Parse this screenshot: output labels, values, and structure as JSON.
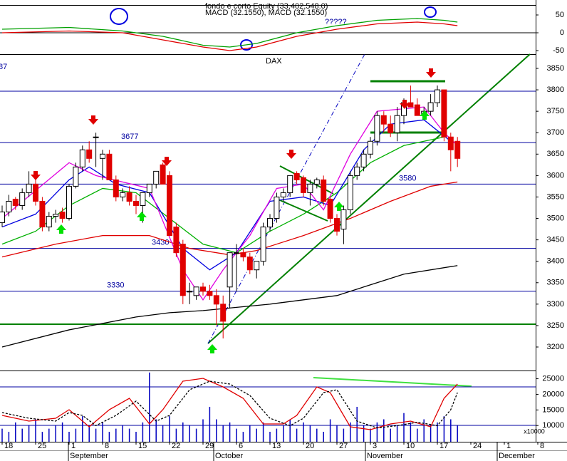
{
  "chart_data": {
    "type": "candlestick",
    "title": "DAX",
    "indicator_title": "MACD (32.1550), MACD (32.1550)",
    "equity_title": "fondo e corto Equity (33,402,548.0)",
    "note": "?????",
    "cut_label": "87",
    "candles": {
      "open": [
        3490,
        3515,
        3545,
        3530,
        3560,
        3580,
        3540,
        3480,
        3505,
        3515,
        3500,
        3575,
        3620,
        3660,
        3690,
        3640,
        3650,
        3590,
        3550,
        3560,
        3540,
        3530,
        3560,
        3580,
        3625,
        3600,
        3480,
        3440,
        3330,
        3320,
        3340,
        3330,
        3320,
        3300,
        3340,
        3420,
        3420,
        3410,
        3380,
        3400,
        3480,
        3500,
        3550,
        3560,
        3605,
        3595,
        3560,
        3580,
        3590,
        3545,
        3500,
        3475,
        3520,
        3600,
        3620,
        3650,
        3680,
        3740,
        3720,
        3700,
        3740,
        3770,
        3765,
        3745,
        3750,
        3770,
        3800,
        3690,
        3680
      ],
      "high": [
        3530,
        3555,
        3550,
        3570,
        3610,
        3590,
        3550,
        3515,
        3520,
        3525,
        3580,
        3630,
        3670,
        3680,
        3700,
        3660,
        3660,
        3600,
        3570,
        3575,
        3555,
        3545,
        3575,
        3610,
        3630,
        3610,
        3490,
        3450,
        3350,
        3340,
        3350,
        3345,
        3335,
        3320,
        3350,
        3440,
        3430,
        3420,
        3400,
        3490,
        3510,
        3560,
        3570,
        3590,
        3610,
        3600,
        3590,
        3595,
        3600,
        3550,
        3510,
        3530,
        3610,
        3630,
        3660,
        3690,
        3750,
        3750,
        3740,
        3760,
        3780,
        3810,
        3780,
        3760,
        3790,
        3810,
        3800,
        3700,
        3690
      ],
      "low": [
        3480,
        3505,
        3520,
        3520,
        3550,
        3530,
        3470,
        3470,
        3490,
        3490,
        3495,
        3570,
        3610,
        3630,
        3620,
        3590,
        3590,
        3540,
        3540,
        3530,
        3510,
        3490,
        3550,
        3570,
        3580,
        3460,
        3410,
        3300,
        3300,
        3310,
        3320,
        3310,
        3250,
        3220,
        3290,
        3330,
        3400,
        3370,
        3360,
        3390,
        3470,
        3490,
        3540,
        3550,
        3580,
        3550,
        3530,
        3570,
        3530,
        3490,
        3460,
        3440,
        3510,
        3590,
        3610,
        3640,
        3670,
        3700,
        3690,
        3680,
        3720,
        3760,
        3740,
        3730,
        3740,
        3760,
        3680,
        3610,
        3620
      ],
      "close": [
        3515,
        3540,
        3530,
        3560,
        3580,
        3540,
        3480,
        3505,
        3510,
        3500,
        3575,
        3620,
        3660,
        3640,
        3690,
        3650,
        3590,
        3550,
        3560,
        3540,
        3530,
        3560,
        3580,
        3610,
        3580,
        3460,
        3420,
        3320,
        3330,
        3340,
        3330,
        3320,
        3300,
        3260,
        3420,
        3420,
        3410,
        3380,
        3400,
        3480,
        3500,
        3550,
        3560,
        3600,
        3590,
        3560,
        3580,
        3590,
        3540,
        3500,
        3470,
        3520,
        3600,
        3620,
        3650,
        3680,
        3740,
        3720,
        3700,
        3740,
        3770,
        3760,
        3740,
        3750,
        3770,
        3800,
        3690,
        3660,
        3640
      ]
    },
    "ma_lines": [
      {
        "color": "#000000",
        "x": [
          0,
          10,
          20,
          25,
          30,
          40,
          50,
          55,
          60,
          68
        ],
        "values": [
          3200,
          3240,
          3270,
          3280,
          3285,
          3300,
          3320,
          3345,
          3370,
          3390
        ]
      },
      {
        "color": "#e00000",
        "x": [
          0,
          8,
          15,
          22,
          28,
          34,
          38,
          45,
          52,
          58,
          64,
          68
        ],
        "values": [
          3410,
          3440,
          3460,
          3460,
          3430,
          3415,
          3425,
          3460,
          3500,
          3540,
          3575,
          3585
        ]
      },
      {
        "color": "#00b000",
        "x": [
          0,
          5,
          10,
          15,
          20,
          25,
          30,
          35,
          40,
          45,
          50,
          55,
          60,
          66
        ],
        "values": [
          3440,
          3470,
          3530,
          3570,
          3560,
          3500,
          3440,
          3420,
          3470,
          3510,
          3560,
          3630,
          3670,
          3690
        ]
      },
      {
        "color": "#0000e0",
        "x": [
          0,
          5,
          10,
          13,
          17,
          22,
          27,
          31,
          35,
          40,
          45,
          49,
          54,
          58,
          63,
          67
        ],
        "values": [
          3480,
          3510,
          3590,
          3620,
          3580,
          3560,
          3430,
          3380,
          3420,
          3540,
          3550,
          3530,
          3660,
          3720,
          3730,
          3680
        ]
      },
      {
        "color": "#e000e0",
        "x": [
          0,
          10,
          14,
          22,
          27,
          30,
          33,
          37,
          41,
          45,
          48,
          52,
          56,
          63,
          66,
          68
        ],
        "values": [
          3500,
          3630,
          3600,
          3570,
          3380,
          3310,
          3380,
          3460,
          3570,
          3580,
          3520,
          3650,
          3750,
          3760,
          3700,
          3670
        ]
      }
    ],
    "levels": [
      {
        "value": 3677,
        "label": "3677"
      },
      {
        "value": 3580,
        "label": "3580"
      },
      {
        "value": 3430,
        "label": "3430"
      },
      {
        "value": 3330,
        "label": "3330"
      }
    ],
    "ylim": [
      3200,
      3850
    ],
    "yticks": [
      3200,
      3250,
      3300,
      3350,
      3400,
      3450,
      3500,
      3550,
      3600,
      3650,
      3700,
      3750,
      3800,
      3850
    ],
    "macd": {
      "ylim": [
        -50,
        50
      ],
      "yticks": [
        -50,
        0,
        50
      ],
      "lines": [
        {
          "color": "#00a000",
          "x": [
            0,
            10,
            18,
            24,
            30,
            34,
            38,
            44,
            50,
            56,
            62,
            66,
            68
          ],
          "values": [
            10,
            15,
            5,
            -10,
            -35,
            -40,
            -30,
            0,
            20,
            35,
            40,
            35,
            30
          ]
        },
        {
          "color": "#e00000",
          "x": [
            0,
            10,
            18,
            24,
            30,
            34,
            38,
            44,
            50,
            56,
            62,
            66,
            68
          ],
          "values": [
            0,
            5,
            0,
            -20,
            -40,
            -50,
            -40,
            -10,
            10,
            25,
            30,
            25,
            20
          ]
        }
      ]
    },
    "lower": {
      "ylim": [
        4800,
        26500
      ],
      "yticks": [
        10000,
        15000,
        20000,
        25000
      ],
      "unit_label": "x10000",
      "volume": [
        9000,
        8000,
        11000,
        9000,
        10000,
        12000,
        8000,
        9000,
        10000,
        11000,
        8000,
        9000,
        13000,
        10000,
        9000,
        11000,
        8000,
        9000,
        10000,
        9000,
        8000,
        11000,
        27000,
        12000,
        10000,
        13000,
        9000,
        11000,
        10000,
        9000,
        12000,
        16000,
        12000,
        10000,
        11000,
        9000,
        8000,
        10000,
        9000,
        11000,
        8000,
        9000,
        10000,
        12000,
        9000,
        11000,
        10000,
        9000,
        8000,
        12000,
        10000,
        9000,
        11000,
        16000,
        10000,
        9000,
        11000,
        12000,
        9000,
        10000,
        14000,
        11000,
        9000,
        12000,
        10000,
        11000,
        13000,
        12000,
        10000
      ],
      "stoch_ylim": [
        0,
        100
      ],
      "stoch": [
        {
          "color": "#e00000",
          "x": [
            0,
            4,
            8,
            10,
            12,
            13,
            16,
            19,
            22,
            24,
            27,
            30,
            33,
            36,
            39,
            42,
            44,
            47,
            49,
            52,
            55,
            58,
            61,
            64,
            66,
            68
          ],
          "values": [
            70,
            80,
            75,
            60,
            80,
            90,
            60,
            40,
            85,
            60,
            10,
            5,
            20,
            40,
            85,
            85,
            70,
            20,
            30,
            90,
            95,
            85,
            80,
            90,
            40,
            15
          ]
        },
        {
          "color": "#000000",
          "x": [
            0,
            4,
            8,
            10,
            12,
            14,
            17,
            20,
            23,
            25,
            28,
            31,
            34,
            37,
            40,
            43,
            45,
            48,
            50,
            53,
            56,
            59,
            62,
            65,
            67,
            68
          ],
          "values": [
            65,
            75,
            80,
            65,
            70,
            88,
            70,
            45,
            80,
            70,
            25,
            10,
            15,
            35,
            75,
            88,
            75,
            30,
            25,
            80,
            92,
            88,
            82,
            88,
            60,
            30
          ]
        }
      ]
    },
    "x_labels": [
      "18",
      "25",
      "1",
      "8",
      "15",
      "22",
      "29",
      "6",
      "13",
      "20",
      "27",
      "3",
      "10",
      "17",
      "24",
      "1",
      "8"
    ],
    "months": [
      "September",
      "October",
      "November",
      "December"
    ]
  }
}
